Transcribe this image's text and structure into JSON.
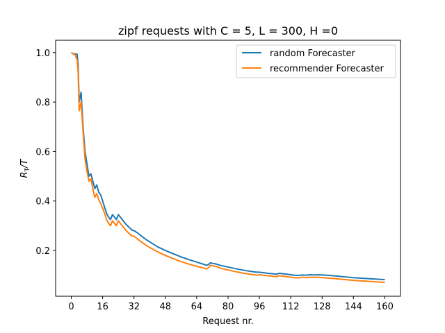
{
  "chart_data": {
    "type": "line",
    "title": "zipf requests with C = 5, L = 300, H =0",
    "xlabel": "Request nr.",
    "ylabel_main": "R",
    "ylabel_sub": "T",
    "ylabel_tail": "/T",
    "xlim": [
      -8,
      168
    ],
    "ylim": [
      0.015,
      1.05
    ],
    "xticks": [
      0,
      16,
      32,
      48,
      64,
      80,
      96,
      112,
      128,
      144,
      160
    ],
    "yticks": [
      0.2,
      0.4,
      0.6,
      0.8,
      1.0
    ],
    "ytick_labels": [
      "0.2",
      "0.4",
      "0.6",
      "0.8",
      "1.0"
    ],
    "grid": false,
    "legend_position": "top-right",
    "series": [
      {
        "name": "random Forecaster",
        "color": "#1f77b4",
        "points": [
          [
            0,
            1.0
          ],
          [
            1,
            0.995
          ],
          [
            2,
            0.995
          ],
          [
            3,
            0.993
          ],
          [
            3.5,
            0.95
          ],
          [
            4,
            0.8
          ],
          [
            5,
            0.84
          ],
          [
            6,
            0.7
          ],
          [
            7,
            0.6
          ],
          [
            8,
            0.55
          ],
          [
            9,
            0.5
          ],
          [
            10,
            0.51
          ],
          [
            11,
            0.48
          ],
          [
            12,
            0.45
          ],
          [
            13,
            0.465
          ],
          [
            14,
            0.435
          ],
          [
            15,
            0.425
          ],
          [
            16,
            0.4
          ],
          [
            17,
            0.375
          ],
          [
            18,
            0.35
          ],
          [
            19,
            0.335
          ],
          [
            20,
            0.325
          ],
          [
            21,
            0.345
          ],
          [
            22,
            0.335
          ],
          [
            23,
            0.325
          ],
          [
            24,
            0.345
          ],
          [
            25,
            0.335
          ],
          [
            26,
            0.325
          ],
          [
            28,
            0.305
          ],
          [
            30,
            0.29
          ],
          [
            31,
            0.282
          ],
          [
            32,
            0.28
          ],
          [
            34,
            0.27
          ],
          [
            36,
            0.257
          ],
          [
            38,
            0.245
          ],
          [
            40,
            0.235
          ],
          [
            44,
            0.215
          ],
          [
            48,
            0.2
          ],
          [
            52,
            0.187
          ],
          [
            56,
            0.174
          ],
          [
            60,
            0.163
          ],
          [
            64,
            0.153
          ],
          [
            66,
            0.148
          ],
          [
            68,
            0.143
          ],
          [
            69,
            0.14
          ],
          [
            70,
            0.143
          ],
          [
            71,
            0.15
          ],
          [
            72,
            0.148
          ],
          [
            74,
            0.145
          ],
          [
            76,
            0.14
          ],
          [
            80,
            0.133
          ],
          [
            84,
            0.126
          ],
          [
            88,
            0.12
          ],
          [
            92,
            0.115
          ],
          [
            95,
            0.112
          ],
          [
            96,
            0.112
          ],
          [
            98,
            0.11
          ],
          [
            100,
            0.108
          ],
          [
            104,
            0.105
          ],
          [
            105,
            0.104
          ],
          [
            106,
            0.108
          ],
          [
            110,
            0.104
          ],
          [
            114,
            0.1
          ],
          [
            116,
            0.099
          ],
          [
            118,
            0.101
          ],
          [
            120,
            0.1
          ],
          [
            122,
            0.102
          ],
          [
            124,
            0.101
          ],
          [
            126,
            0.102
          ],
          [
            128,
            0.101
          ],
          [
            132,
            0.099
          ],
          [
            136,
            0.096
          ],
          [
            140,
            0.093
          ],
          [
            144,
            0.09
          ],
          [
            148,
            0.088
          ],
          [
            152,
            0.086
          ],
          [
            156,
            0.084
          ],
          [
            160,
            0.082
          ]
        ]
      },
      {
        "name": "recommender Forecaster",
        "color": "#ff7f0e",
        "points": [
          [
            0,
            1.0
          ],
          [
            1,
            0.995
          ],
          [
            2,
            0.99
          ],
          [
            3,
            0.97
          ],
          [
            3.5,
            0.92
          ],
          [
            4,
            0.765
          ],
          [
            5,
            0.8
          ],
          [
            6,
            0.68
          ],
          [
            7,
            0.57
          ],
          [
            8,
            0.52
          ],
          [
            9,
            0.48
          ],
          [
            10,
            0.49
          ],
          [
            11,
            0.45
          ],
          [
            12,
            0.415
          ],
          [
            13,
            0.43
          ],
          [
            14,
            0.405
          ],
          [
            15,
            0.39
          ],
          [
            16,
            0.37
          ],
          [
            17,
            0.35
          ],
          [
            18,
            0.325
          ],
          [
            19,
            0.31
          ],
          [
            20,
            0.3
          ],
          [
            21,
            0.32
          ],
          [
            22,
            0.31
          ],
          [
            23,
            0.3
          ],
          [
            24,
            0.32
          ],
          [
            25,
            0.31
          ],
          [
            26,
            0.3
          ],
          [
            28,
            0.28
          ],
          [
            30,
            0.265
          ],
          [
            31,
            0.258
          ],
          [
            32,
            0.258
          ],
          [
            34,
            0.245
          ],
          [
            36,
            0.233
          ],
          [
            38,
            0.222
          ],
          [
            40,
            0.212
          ],
          [
            44,
            0.195
          ],
          [
            48,
            0.18
          ],
          [
            52,
            0.167
          ],
          [
            56,
            0.155
          ],
          [
            60,
            0.145
          ],
          [
            64,
            0.136
          ],
          [
            66,
            0.132
          ],
          [
            68,
            0.128
          ],
          [
            69,
            0.125
          ],
          [
            70,
            0.13
          ],
          [
            71,
            0.14
          ],
          [
            72,
            0.138
          ],
          [
            74,
            0.135
          ],
          [
            76,
            0.128
          ],
          [
            80,
            0.121
          ],
          [
            84,
            0.114
          ],
          [
            88,
            0.108
          ],
          [
            92,
            0.103
          ],
          [
            95,
            0.1
          ],
          [
            96,
            0.102
          ],
          [
            98,
            0.1
          ],
          [
            100,
            0.098
          ],
          [
            104,
            0.095
          ],
          [
            105,
            0.094
          ],
          [
            106,
            0.098
          ],
          [
            110,
            0.094
          ],
          [
            114,
            0.09
          ],
          [
            116,
            0.089
          ],
          [
            118,
            0.092
          ],
          [
            120,
            0.09
          ],
          [
            122,
            0.092
          ],
          [
            124,
            0.091
          ],
          [
            126,
            0.092
          ],
          [
            128,
            0.09
          ],
          [
            132,
            0.088
          ],
          [
            136,
            0.085
          ],
          [
            140,
            0.082
          ],
          [
            144,
            0.079
          ],
          [
            148,
            0.077
          ],
          [
            152,
            0.075
          ],
          [
            156,
            0.073
          ],
          [
            160,
            0.071
          ]
        ]
      }
    ]
  }
}
